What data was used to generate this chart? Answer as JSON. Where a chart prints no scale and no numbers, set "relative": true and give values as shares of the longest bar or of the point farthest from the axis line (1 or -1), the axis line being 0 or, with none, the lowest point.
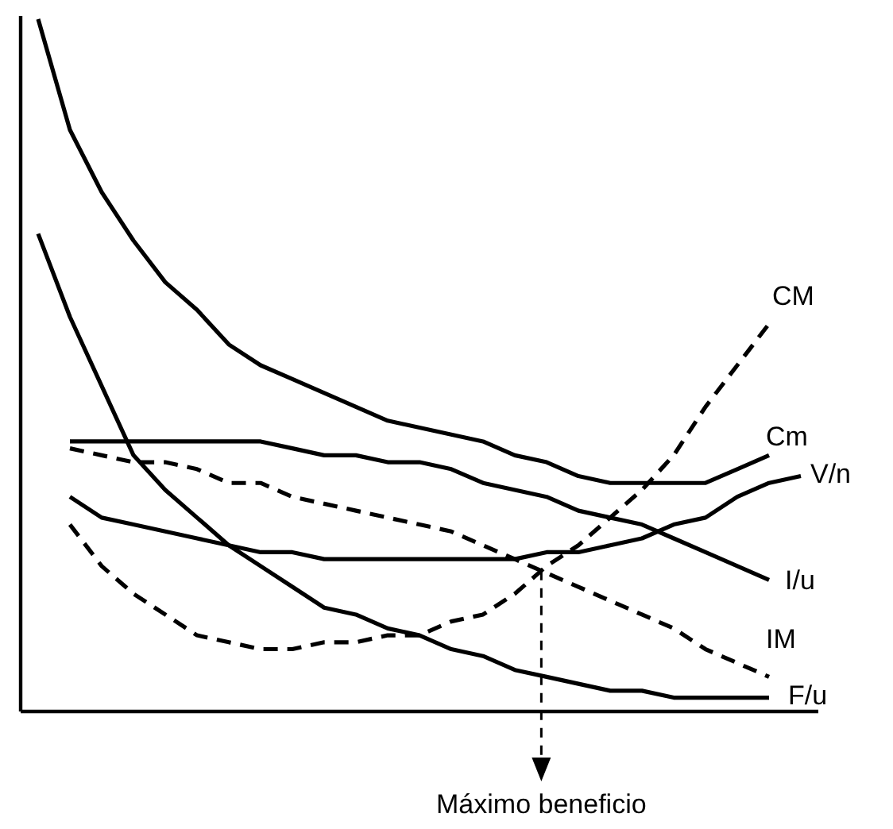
{
  "chart_data": {
    "type": "line",
    "relative": true,
    "tick_labels": false,
    "marker": "none",
    "categories": [
      null,
      null,
      null,
      null,
      null,
      null,
      null,
      null,
      null,
      null,
      null,
      null,
      null,
      null,
      null,
      null,
      null,
      null,
      null,
      null,
      null,
      null,
      null,
      null,
      null
    ],
    "series": [
      {
        "name": "CM",
        "color": "#000000",
        "line_style": "dashed",
        "values": [
          null,
          0.27,
          0.21,
          0.17,
          0.14,
          0.11,
          0.1,
          0.09,
          0.09,
          0.1,
          0.1,
          0.11,
          0.11,
          0.13,
          0.14,
          0.17,
          0.21,
          0.24,
          0.28,
          0.32,
          0.37,
          0.44,
          0.5,
          0.56,
          null
        ]
      },
      {
        "name": "Cm",
        "color": "#000000",
        "line_style": "solid",
        "values": [
          1.0,
          0.84,
          0.75,
          0.68,
          0.62,
          0.58,
          0.53,
          0.5,
          0.48,
          0.46,
          0.44,
          0.42,
          0.41,
          0.4,
          0.39,
          0.37,
          0.36,
          0.34,
          0.33,
          0.33,
          0.33,
          0.33,
          0.35,
          0.37,
          null
        ]
      },
      {
        "name": "V/n",
        "color": "#000000",
        "line_style": "solid",
        "values": [
          null,
          0.31,
          0.28,
          0.27,
          0.26,
          0.25,
          0.24,
          0.23,
          0.23,
          0.22,
          0.22,
          0.22,
          0.22,
          0.22,
          0.22,
          0.22,
          0.23,
          0.23,
          0.24,
          0.25,
          0.27,
          0.28,
          0.31,
          0.33,
          0.34
        ]
      },
      {
        "name": "I/u",
        "color": "#000000",
        "line_style": "solid",
        "values": [
          null,
          0.39,
          0.39,
          0.39,
          0.39,
          0.39,
          0.39,
          0.39,
          0.38,
          0.37,
          0.37,
          0.36,
          0.36,
          0.35,
          0.33,
          0.32,
          0.31,
          0.29,
          0.28,
          0.27,
          0.25,
          0.23,
          0.21,
          0.19,
          null
        ]
      },
      {
        "name": "IM",
        "color": "#000000",
        "line_style": "dashed",
        "values": [
          null,
          0.38,
          0.37,
          0.36,
          0.36,
          0.35,
          0.33,
          0.33,
          0.31,
          0.3,
          0.29,
          0.28,
          0.27,
          0.26,
          0.24,
          0.22,
          0.2,
          0.18,
          0.16,
          0.14,
          0.12,
          0.09,
          0.07,
          0.05,
          null
        ]
      },
      {
        "name": "F/u",
        "color": "#000000",
        "line_style": "solid",
        "values": [
          0.69,
          0.57,
          0.47,
          0.37,
          0.32,
          0.28,
          0.24,
          0.21,
          0.18,
          0.15,
          0.14,
          0.12,
          0.11,
          0.09,
          0.08,
          0.06,
          0.05,
          0.04,
          0.03,
          0.03,
          0.02,
          0.02,
          0.02,
          0.02,
          null
        ]
      }
    ],
    "annotations": [
      "Máximo beneficio"
    ]
  }
}
